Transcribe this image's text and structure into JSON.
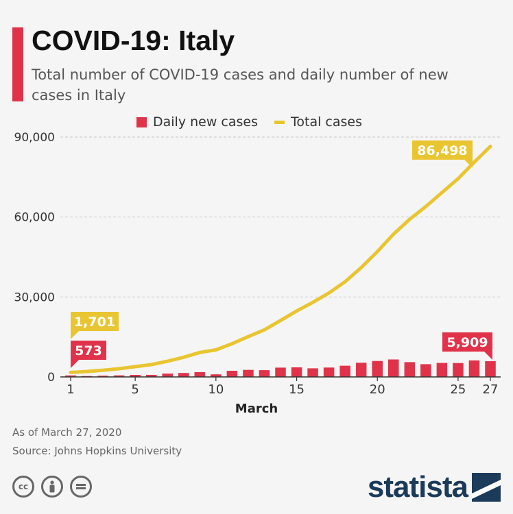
{
  "header": {
    "title": "COVID-19: Italy",
    "subtitle": "Total number of COVID-19 cases and daily number of new cases in Italy"
  },
  "colors": {
    "accent": "#e0334a",
    "bars": "#e0334a",
    "line": "#e8c531",
    "brand": "#1c3a5a",
    "grid": "#cfcfcf"
  },
  "chart_data": {
    "type": "bar+line",
    "x_axis_label": "March",
    "x_tick_labels": [
      "1",
      "5",
      "10",
      "15",
      "20",
      "25",
      "27"
    ],
    "x_tick_values": [
      1,
      5,
      10,
      15,
      20,
      25,
      27
    ],
    "y_tick_labels": [
      "0",
      "30,000",
      "60,000",
      "90,000"
    ],
    "y_tick_values": [
      0,
      30000,
      60000,
      90000
    ],
    "ylim": [
      0,
      90000
    ],
    "xlim": [
      1,
      27
    ],
    "grid": true,
    "legend_placement": "top",
    "series": [
      {
        "name": "Daily new cases",
        "kind": "bar",
        "x": [
          1,
          2,
          3,
          4,
          5,
          6,
          7,
          8,
          9,
          10,
          11,
          12,
          13,
          14,
          15,
          16,
          17,
          18,
          19,
          20,
          21,
          22,
          23,
          24,
          25,
          26,
          27
        ],
        "values": [
          573,
          335,
          466,
          587,
          769,
          778,
          1247,
          1492,
          1797,
          977,
          2313,
          2651,
          2547,
          3497,
          3590,
          3233,
          3526,
          4207,
          5322,
          5986,
          6557,
          5560,
          4789,
          5249,
          5210,
          6203,
          5909
        ]
      },
      {
        "name": "Total cases",
        "kind": "line",
        "x": [
          1,
          2,
          3,
          4,
          5,
          6,
          7,
          8,
          9,
          10,
          11,
          12,
          13,
          14,
          15,
          16,
          17,
          18,
          19,
          20,
          21,
          22,
          23,
          24,
          25,
          26,
          27
        ],
        "values": [
          1701,
          2036,
          2502,
          3089,
          3858,
          4636,
          5883,
          7375,
          9172,
          10149,
          12462,
          15113,
          17660,
          21157,
          24747,
          27980,
          31506,
          35713,
          41035,
          47021,
          53578,
          59138,
          63927,
          69176,
          74386,
          80589,
          86498
        ]
      }
    ],
    "callouts": [
      {
        "series": "Total cases",
        "x": 1,
        "label": "1,701"
      },
      {
        "series": "Daily new cases",
        "x": 1,
        "label": "573"
      },
      {
        "series": "Total cases",
        "x": 27,
        "label": "86,498"
      },
      {
        "series": "Daily new cases",
        "x": 27,
        "label": "5,909"
      }
    ]
  },
  "footer": {
    "as_of": "As of March 27, 2020",
    "source": "Source: Johns Hopkins University",
    "brand": "statista",
    "license_icons": [
      "creative-commons-icon",
      "attribution-icon",
      "no-derivatives-icon"
    ]
  }
}
